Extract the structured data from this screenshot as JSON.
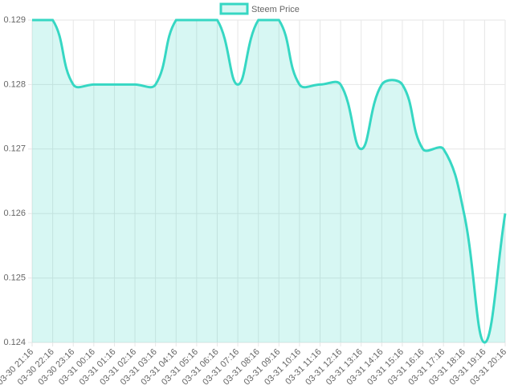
{
  "chart_data": {
    "type": "line",
    "categories": [
      "03-30 21:16",
      "03-30 22:16",
      "03-30 23:16",
      "03-31 00:16",
      "03-31 01:16",
      "03-31 02:16",
      "03-31 03:16",
      "03-31 04:16",
      "03-31 05:16",
      "03-31 06:16",
      "03-31 07:16",
      "03-31 08:16",
      "03-31 09:16",
      "03-31 10:16",
      "03-31 11:16",
      "03-31 12:16",
      "03-31 13:16",
      "03-31 14:16",
      "03-31 15:16",
      "03-31 16:16",
      "03-31 17:16",
      "03-31 18:16",
      "03-31 19:16",
      "03-31 20:16"
    ],
    "series": [
      {
        "name": "Steem Price",
        "color": "#36d7c3",
        "fill": "rgba(54,215,195,0.2)",
        "values": [
          0.129,
          0.129,
          0.128,
          0.128,
          0.128,
          0.128,
          0.128,
          0.129,
          0.129,
          0.129,
          0.128,
          0.129,
          0.129,
          0.128,
          0.128,
          0.128,
          0.127,
          0.128,
          0.128,
          0.127,
          0.127,
          0.126,
          0.124,
          0.126
        ]
      }
    ],
    "ylim": [
      0.124,
      0.129
    ],
    "yticks": [
      0.124,
      0.125,
      0.126,
      0.127,
      0.128,
      0.129
    ],
    "grid": true,
    "legend": "top"
  }
}
